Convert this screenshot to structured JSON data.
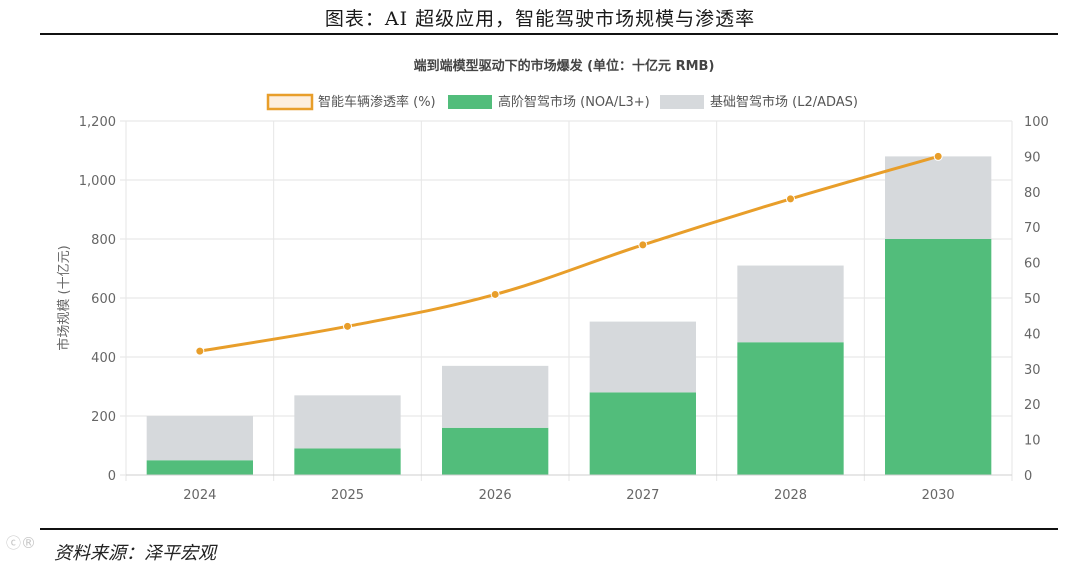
{
  "figure_title": "图表：AI 超级应用，智能驾驶市场规模与渗透率",
  "source": "资料来源：泽平宏观",
  "watermark": "ⓒ®",
  "chart_data": {
    "type": "bar",
    "title": "端到端模型驱动下的市场爆发 (单位：十亿元 RMB)",
    "categories": [
      "2024",
      "2025",
      "2026",
      "2027",
      "2028",
      "2030"
    ],
    "series": [
      {
        "name": "高阶智驾市场 (NOA/L3+)",
        "type": "bar",
        "stack": "market",
        "color": "#52bd7b",
        "values": [
          50,
          90,
          160,
          280,
          450,
          800
        ]
      },
      {
        "name": "基础智驾市场 (L2/ADAS)",
        "type": "bar",
        "stack": "market",
        "color": "#d6d9dc",
        "values": [
          150,
          180,
          210,
          240,
          260,
          280
        ]
      },
      {
        "name": "智能车辆渗透率 (%)",
        "type": "line",
        "axis": "right",
        "color": "#e89e2a",
        "values": [
          35,
          42,
          51,
          65,
          78,
          90
        ]
      }
    ],
    "legend": [
      "智能车辆渗透率 (%)",
      "高阶智驾市场 (NOA/L3+)",
      "基础智驾市场 (L2/ADAS)"
    ],
    "ylabel": "市场规模 (十亿元)",
    "ylim": [
      0,
      1200
    ],
    "y_ticks": [
      "0",
      "200",
      "400",
      "600",
      "800",
      "1,000",
      "1,200"
    ],
    "y2lim": [
      0,
      100
    ],
    "y2_ticks": [
      "0",
      "10",
      "20",
      "30",
      "40",
      "50",
      "60",
      "70",
      "80",
      "90",
      "100"
    ],
    "grid": true,
    "legend_position": "top"
  }
}
